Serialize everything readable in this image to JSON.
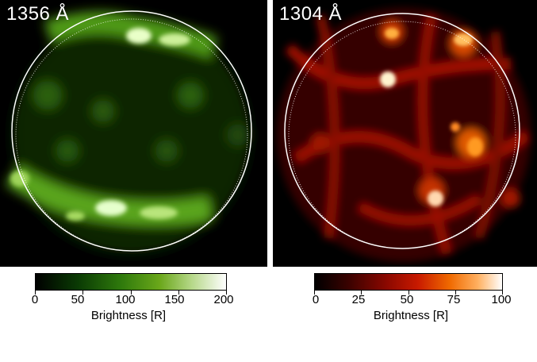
{
  "left_panel": {
    "label": "1356 Å",
    "colors": {
      "low": "#000000",
      "mid": "#3a8a10",
      "high": "#ffffff"
    },
    "colorbar": {
      "ticks": [
        "0",
        "50",
        "100",
        "150",
        "200"
      ],
      "axis_label": "Brightness [R]"
    }
  },
  "right_panel": {
    "label": "1304 Å",
    "colors": {
      "low": "#000000",
      "mid": "#c41600",
      "high": "#ffffff"
    },
    "colorbar": {
      "ticks": [
        "0",
        "25",
        "50",
        "75",
        "100"
      ],
      "axis_label": "Brightness [R]"
    }
  }
}
